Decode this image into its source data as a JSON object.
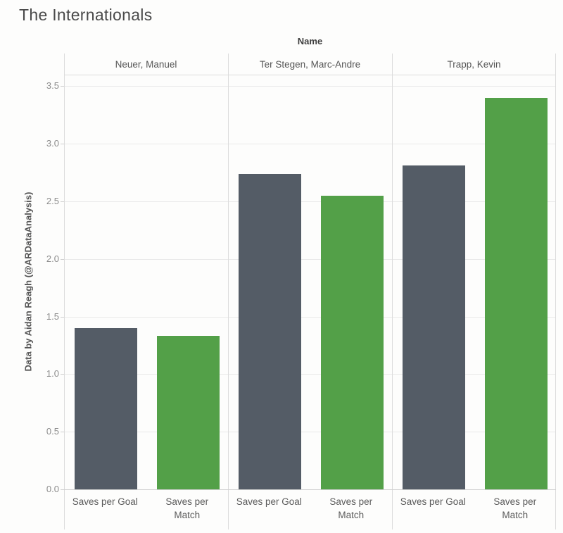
{
  "chart_data": {
    "type": "bar",
    "title": "The Internationals",
    "facet_header": "Name",
    "ylabel": "Data by Aidan Reagh (@ARDataAnalysis)",
    "xlabel": "",
    "ylim": [
      0,
      3.6
    ],
    "yticks": [
      0,
      0.5,
      1,
      1.5,
      2,
      2.5,
      3,
      3.5
    ],
    "grid": true,
    "legend_position": "none",
    "colors": {
      "saves_per_goal": "#545c66",
      "saves_per_match": "#53a048",
      "gridline": "#e9e9e9",
      "border": "#dcdcdc",
      "tick_text": "#8c8c8c"
    },
    "groups": [
      {
        "name": "Neuer, Manuel",
        "bars": [
          {
            "label": "Saves per Goal",
            "label_lines": [
              "Saves per Goal"
            ],
            "value": 1.4,
            "color": "#545c66"
          },
          {
            "label": "Saves per Match",
            "label_lines": [
              "Saves per",
              "Match"
            ],
            "value": 1.33,
            "color": "#53a048"
          }
        ]
      },
      {
        "name": "Ter Stegen, Marc-Andre",
        "bars": [
          {
            "label": "Saves per Goal",
            "label_lines": [
              "Saves per Goal"
            ],
            "value": 2.74,
            "color": "#545c66"
          },
          {
            "label": "Saves per Match",
            "label_lines": [
              "Saves per",
              "Match"
            ],
            "value": 2.55,
            "color": "#53a048"
          }
        ]
      },
      {
        "name": "Trapp, Kevin",
        "bars": [
          {
            "label": "Saves per Goal",
            "label_lines": [
              "Saves per Goal"
            ],
            "value": 2.81,
            "color": "#545c66"
          },
          {
            "label": "Saves per Match",
            "label_lines": [
              "Saves per",
              "Match"
            ],
            "value": 3.4,
            "color": "#53a048"
          }
        ]
      }
    ]
  }
}
